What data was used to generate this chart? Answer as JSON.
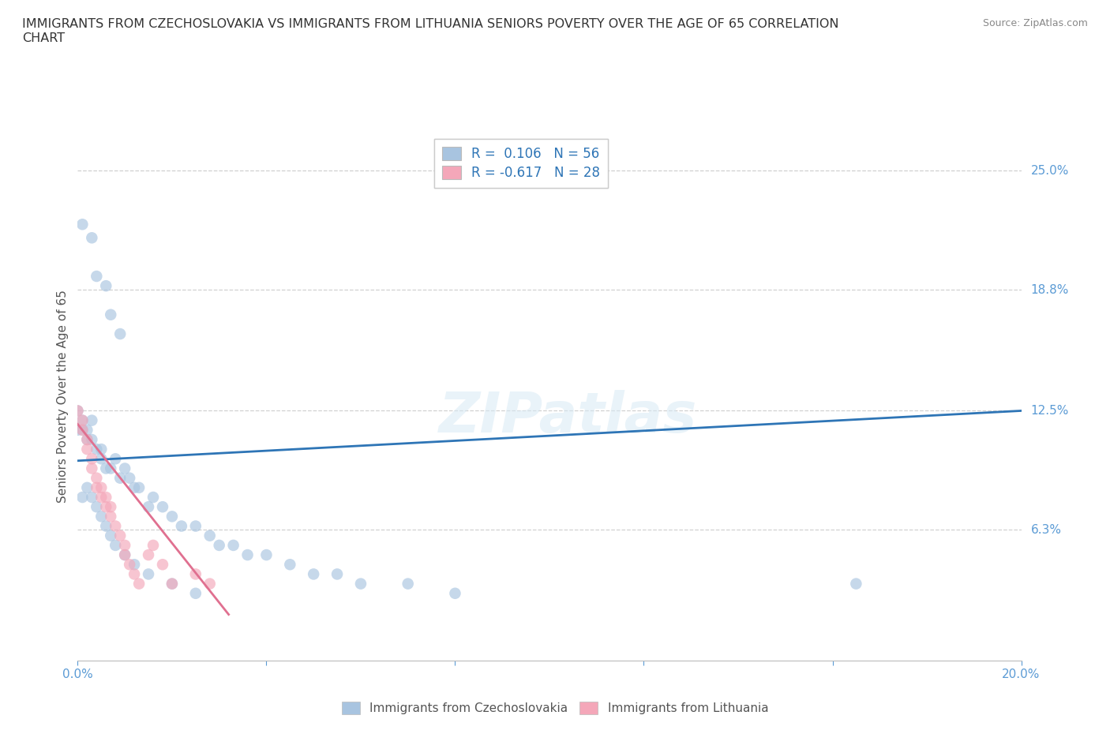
{
  "title": "IMMIGRANTS FROM CZECHOSLOVAKIA VS IMMIGRANTS FROM LITHUANIA SENIORS POVERTY OVER THE AGE OF 65 CORRELATION\nCHART",
  "source": "Source: ZipAtlas.com",
  "ylabel": "Seniors Poverty Over the Age of 65",
  "xlim": [
    0.0,
    0.2
  ],
  "ylim": [
    -0.005,
    0.27
  ],
  "ytick_labels_right": [
    "25.0%",
    "18.8%",
    "12.5%",
    "6.3%"
  ],
  "ytick_vals_right": [
    0.25,
    0.188,
    0.125,
    0.063
  ],
  "legend_entries": [
    {
      "label": "Immigrants from Czechoslovakia",
      "color": "#a8c4e0",
      "R": "0.106",
      "N": "56"
    },
    {
      "label": "Immigrants from Lithuania",
      "color": "#f4a7b9",
      "R": "-0.617",
      "N": "28"
    }
  ],
  "watermark": "ZIPatlas",
  "czech_x": [
    0.001,
    0.003,
    0.004,
    0.006,
    0.007,
    0.009,
    0.0,
    0.0,
    0.001,
    0.001,
    0.002,
    0.002,
    0.003,
    0.003,
    0.004,
    0.005,
    0.005,
    0.006,
    0.007,
    0.008,
    0.009,
    0.01,
    0.011,
    0.012,
    0.013,
    0.015,
    0.016,
    0.018,
    0.02,
    0.022,
    0.025,
    0.028,
    0.03,
    0.033,
    0.036,
    0.04,
    0.045,
    0.05,
    0.055,
    0.06,
    0.07,
    0.08,
    0.001,
    0.002,
    0.003,
    0.004,
    0.005,
    0.006,
    0.007,
    0.008,
    0.01,
    0.012,
    0.015,
    0.02,
    0.025,
    0.165
  ],
  "czech_y": [
    0.222,
    0.215,
    0.195,
    0.19,
    0.175,
    0.165,
    0.125,
    0.115,
    0.115,
    0.12,
    0.11,
    0.115,
    0.11,
    0.12,
    0.105,
    0.1,
    0.105,
    0.095,
    0.095,
    0.1,
    0.09,
    0.095,
    0.09,
    0.085,
    0.085,
    0.075,
    0.08,
    0.075,
    0.07,
    0.065,
    0.065,
    0.06,
    0.055,
    0.055,
    0.05,
    0.05,
    0.045,
    0.04,
    0.04,
    0.035,
    0.035,
    0.03,
    0.08,
    0.085,
    0.08,
    0.075,
    0.07,
    0.065,
    0.06,
    0.055,
    0.05,
    0.045,
    0.04,
    0.035,
    0.03,
    0.035
  ],
  "lith_x": [
    0.0,
    0.001,
    0.001,
    0.002,
    0.002,
    0.003,
    0.003,
    0.004,
    0.004,
    0.005,
    0.005,
    0.006,
    0.006,
    0.007,
    0.007,
    0.008,
    0.009,
    0.01,
    0.01,
    0.011,
    0.012,
    0.013,
    0.015,
    0.016,
    0.018,
    0.02,
    0.025,
    0.028
  ],
  "lith_y": [
    0.125,
    0.115,
    0.12,
    0.11,
    0.105,
    0.1,
    0.095,
    0.09,
    0.085,
    0.08,
    0.085,
    0.075,
    0.08,
    0.07,
    0.075,
    0.065,
    0.06,
    0.055,
    0.05,
    0.045,
    0.04,
    0.035,
    0.05,
    0.055,
    0.045,
    0.035,
    0.04,
    0.035
  ],
  "czech_line_x": [
    0.0,
    0.2
  ],
  "czech_line_y": [
    0.099,
    0.125
  ],
  "lith_line_x": [
    0.0,
    0.032
  ],
  "lith_line_y": [
    0.118,
    0.019
  ],
  "bg_color": "#ffffff",
  "grid_color": "#d0d0d0",
  "axis_color": "#5b9bd5",
  "scatter_alpha": 0.65,
  "scatter_size": 110
}
